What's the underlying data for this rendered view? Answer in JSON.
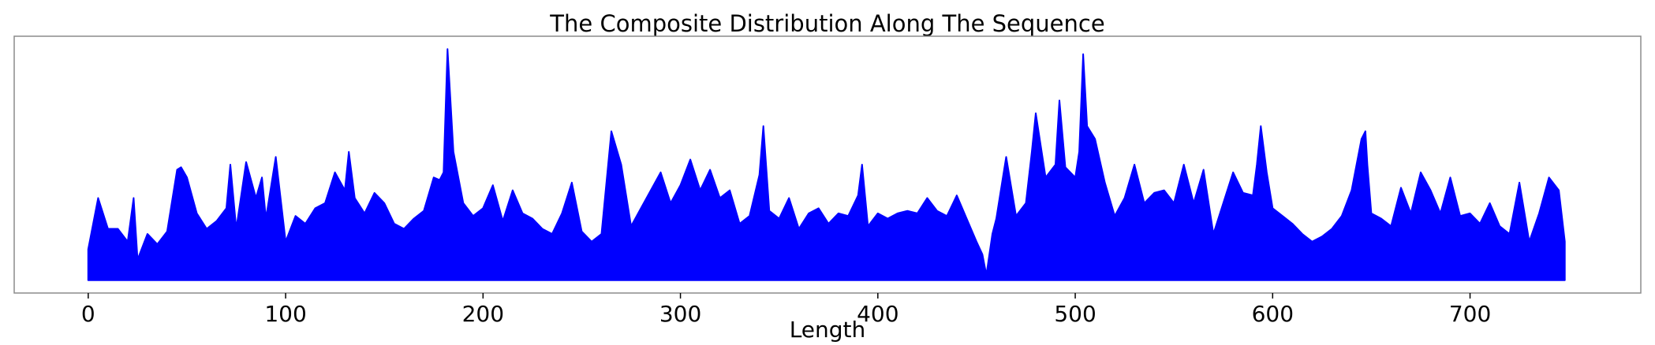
{
  "chart_data": {
    "type": "area",
    "title": "The Composite Distribution Along The Sequence",
    "xlabel": "Length",
    "ylabel": "",
    "xlim": [
      -37.5,
      786.5
    ],
    "ylim": [
      -0.5,
      9.5
    ],
    "x_ticks": [
      0,
      100,
      200,
      300,
      400,
      500,
      600,
      700
    ],
    "x_tick_labels": [
      "0",
      "100",
      "200",
      "300",
      "400",
      "500",
      "600",
      "700"
    ],
    "y_ticks_visible": false,
    "grid": false,
    "legend": "none",
    "color": "#0000ff",
    "baseline": 0,
    "series": [
      {
        "x": [
          0,
          5,
          10,
          15,
          20,
          23,
          25,
          30,
          35,
          40,
          45,
          47,
          50,
          55,
          60,
          65,
          70,
          72,
          75,
          80,
          85,
          88,
          90,
          95,
          100,
          105,
          110,
          115,
          120,
          125,
          130,
          132,
          135,
          140,
          145,
          150,
          155,
          160,
          165,
          170,
          175,
          178,
          180,
          182,
          185,
          190,
          195,
          200,
          205,
          210,
          215,
          220,
          225,
          230,
          235,
          240,
          245,
          250,
          255,
          260,
          265,
          270,
          275,
          280,
          285,
          290,
          295,
          300,
          305,
          310,
          315,
          320,
          325,
          330,
          335,
          340,
          342,
          345,
          350,
          355,
          360,
          365,
          370,
          375,
          380,
          385,
          390,
          392,
          395,
          400,
          405,
          410,
          415,
          420,
          425,
          430,
          435,
          440,
          445,
          450,
          453,
          455,
          458,
          460,
          465,
          470,
          475,
          478,
          480,
          485,
          490,
          492,
          495,
          500,
          502,
          504,
          506,
          510,
          515,
          520,
          525,
          530,
          535,
          540,
          545,
          550,
          555,
          560,
          565,
          570,
          575,
          580,
          585,
          590,
          592,
          594,
          597,
          600,
          605,
          610,
          615,
          620,
          625,
          630,
          635,
          640,
          645,
          647,
          648,
          650,
          655,
          660,
          665,
          670,
          675,
          680,
          685,
          690,
          695,
          700,
          705,
          710,
          715,
          720,
          725,
          730,
          735,
          740,
          745,
          748
        ],
        "y": [
          1.2,
          3.2,
          2.0,
          2.0,
          1.5,
          3.2,
          0.8,
          1.8,
          1.4,
          1.9,
          4.3,
          4.4,
          4.0,
          2.6,
          2.0,
          2.3,
          2.8,
          4.5,
          2.0,
          4.6,
          3.2,
          4.0,
          2.4,
          4.8,
          1.5,
          2.5,
          2.2,
          2.8,
          3.0,
          4.2,
          3.5,
          5.0,
          3.2,
          2.6,
          3.4,
          3.0,
          2.2,
          2.0,
          2.4,
          2.7,
          4.0,
          3.9,
          4.2,
          9.0,
          5.0,
          3.0,
          2.5,
          2.8,
          3.7,
          2.3,
          3.5,
          2.6,
          2.4,
          2.0,
          1.8,
          2.6,
          3.8,
          1.9,
          1.5,
          1.8,
          5.8,
          4.5,
          2.1,
          2.8,
          3.5,
          4.2,
          3.0,
          3.7,
          4.7,
          3.5,
          4.3,
          3.2,
          3.5,
          2.2,
          2.5,
          4.1,
          6.0,
          2.7,
          2.4,
          3.2,
          2.0,
          2.6,
          2.8,
          2.2,
          2.6,
          2.5,
          3.3,
          4.5,
          2.1,
          2.6,
          2.4,
          2.6,
          2.7,
          2.6,
          3.2,
          2.7,
          2.5,
          3.3,
          2.4,
          1.5,
          1.0,
          0.2,
          1.8,
          2.4,
          4.8,
          2.5,
          3.0,
          5.0,
          6.5,
          4.0,
          4.5,
          7.0,
          4.4,
          4.0,
          5.0,
          8.8,
          6.0,
          5.5,
          3.8,
          2.5,
          3.2,
          4.5,
          3.0,
          3.4,
          3.5,
          3.0,
          4.5,
          3.0,
          4.3,
          1.8,
          3.0,
          4.2,
          3.4,
          3.3,
          4.5,
          6.0,
          4.2,
          2.8,
          2.5,
          2.2,
          1.8,
          1.5,
          1.7,
          2.0,
          2.5,
          3.5,
          5.5,
          5.8,
          4.5,
          2.6,
          2.4,
          2.1,
          3.6,
          2.6,
          4.2,
          3.5,
          2.6,
          4.0,
          2.5,
          2.6,
          2.2,
          3.0,
          2.1,
          1.8,
          3.8,
          1.5,
          2.6,
          4.0,
          3.5,
          1.5
        ]
      }
    ]
  }
}
